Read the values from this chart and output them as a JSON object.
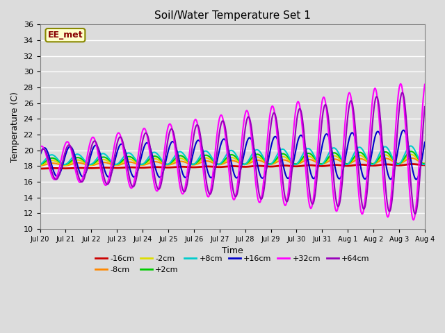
{
  "title": "Soil/Water Temperature Set 1",
  "xlabel": "Time",
  "ylabel": "Temperature (C)",
  "ylim": [
    10,
    36
  ],
  "yticks": [
    10,
    12,
    14,
    16,
    18,
    20,
    22,
    24,
    26,
    28,
    30,
    32,
    34,
    36
  ],
  "background_color": "#dcdcdc",
  "watermark": "EE_met",
  "series": [
    {
      "label": "-16cm",
      "color": "#cc0000",
      "linewidth": 2.0
    },
    {
      "label": "-8cm",
      "color": "#ff8800",
      "linewidth": 1.5
    },
    {
      "label": "-2cm",
      "color": "#dddd00",
      "linewidth": 1.5
    },
    {
      "label": "+2cm",
      "color": "#00cc00",
      "linewidth": 1.5
    },
    {
      "label": "+8cm",
      "color": "#00cccc",
      "linewidth": 1.5
    },
    {
      "label": "+16cm",
      "color": "#0000cc",
      "linewidth": 1.5
    },
    {
      "label": "+32cm",
      "color": "#ff00ff",
      "linewidth": 1.5
    },
    {
      "label": "+64cm",
      "color": "#9900bb",
      "linewidth": 1.5
    }
  ],
  "xtick_labels": [
    "Jul 20",
    "Jul 21",
    "Jul 22",
    "Jul 23",
    "Jul 24",
    "Jul 25",
    "Jul 26",
    "Jul 27",
    "Jul 28",
    "Jul 29",
    "Jul 30",
    "Jul 31",
    "Aug 1",
    "Aug 2",
    "Aug 3",
    "Aug 4"
  ]
}
